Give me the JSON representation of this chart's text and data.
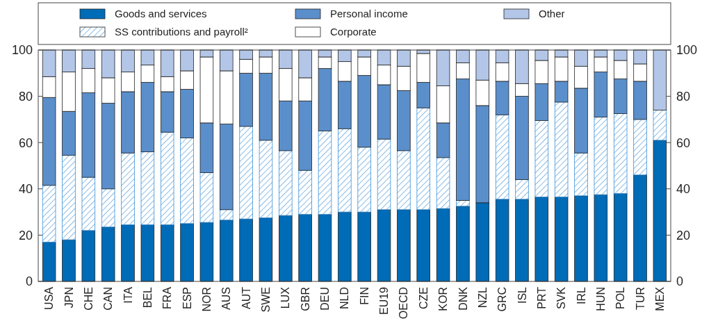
{
  "chart_data": {
    "type": "bar",
    "stacked": true,
    "legend": "top",
    "grid": false,
    "categories": [
      "USA",
      "JPN",
      "CHE",
      "CAN",
      "ITA",
      "BEL",
      "FRA",
      "ESP",
      "NOR",
      "AUS",
      "AUT",
      "SWE",
      "LUX",
      "GBR",
      "DEU",
      "NLD",
      "FIN",
      "EU19",
      "OECD",
      "CZE",
      "KOR",
      "DNK",
      "NZL",
      "GRC",
      "ISL",
      "PRT",
      "SVK",
      "IRL",
      "HUN",
      "POL",
      "TUR",
      "MEX"
    ],
    "series": [
      {
        "name": "Goods and services",
        "color": "#006bb6",
        "values": [
          17,
          18,
          22,
          23.5,
          24.5,
          24.5,
          24.5,
          25,
          25.5,
          26.5,
          27,
          27.5,
          28.5,
          29,
          29,
          30,
          30,
          31,
          31,
          31,
          31.5,
          32.5,
          34,
          35.5,
          35.5,
          36.5,
          36.5,
          37,
          37.5,
          38,
          46,
          61
        ]
      },
      {
        "name": "SS contributions and payroll²",
        "color": "#3a8fd6",
        "values": [
          24.5,
          36.5,
          23,
          16.5,
          31,
          31.5,
          40,
          37,
          21.5,
          4.5,
          40,
          33.5,
          28,
          19,
          36,
          36,
          28,
          30.5,
          25.5,
          44,
          22,
          2.5,
          0,
          36.5,
          8.5,
          33,
          41,
          18.5,
          33.5,
          34.5,
          24,
          13
        ]
      },
      {
        "name": "Personal income",
        "color": "#5b8fcb",
        "values": [
          38,
          19,
          36.5,
          37,
          26.5,
          30,
          17.5,
          21,
          21.5,
          37,
          23,
          29,
          21.5,
          30,
          27,
          20.5,
          31,
          23.5,
          26,
          11,
          15,
          52.5,
          42,
          14.5,
          36,
          16,
          9,
          28,
          19.5,
          15,
          16.5,
          0
        ]
      },
      {
        "name": "Corporate",
        "color": "#ffffff",
        "values": [
          9,
          17,
          10.5,
          11,
          8.5,
          7.5,
          6.5,
          8,
          28.5,
          23,
          6,
          7,
          14,
          10,
          5,
          8.5,
          8,
          8.5,
          10.5,
          12.5,
          16,
          7,
          11,
          8,
          5.5,
          10,
          10.5,
          9.5,
          6.5,
          8,
          7.5,
          0
        ]
      },
      {
        "name": "Other",
        "color": "#b3c6e7",
        "values": [
          11.5,
          9.5,
          8,
          12,
          9.5,
          6.5,
          11.5,
          9,
          3,
          9,
          4,
          3,
          8,
          12,
          3,
          5,
          3,
          6.5,
          7,
          1.5,
          15.5,
          5.5,
          13,
          5.5,
          14.5,
          4.5,
          3,
          7,
          3,
          4.5,
          6,
          26
        ]
      }
    ],
    "ylim": [
      0,
      100
    ],
    "yticks": [
      0,
      20,
      40,
      60,
      80,
      100
    ],
    "y2lim": [
      0,
      100
    ],
    "y2ticks": [
      0,
      20,
      40,
      60,
      80,
      100
    ]
  }
}
